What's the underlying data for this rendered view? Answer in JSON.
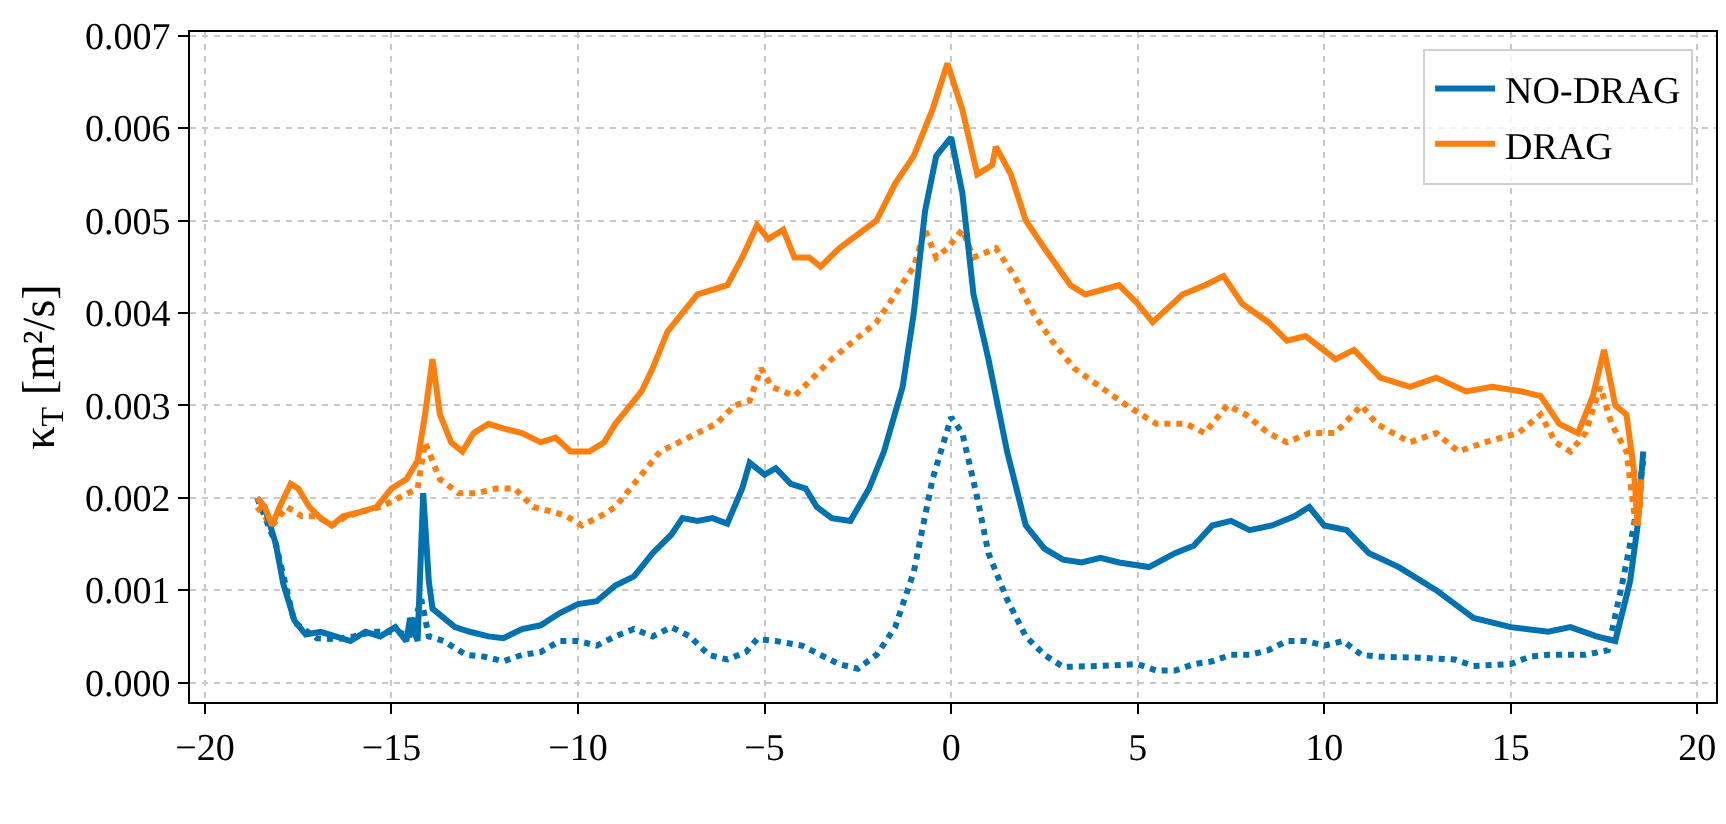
{
  "chart_data": {
    "type": "line",
    "ylabel": "κ$_{T}$ [m²/s]",
    "xlim": [
      -20.4,
      20.5
    ],
    "ylim": [
      -0.00021,
      0.00704
    ],
    "xticks": [
      {
        "value": -20,
        "label": "−20"
      },
      {
        "value": -15,
        "label": "−15"
      },
      {
        "value": -10,
        "label": "−10"
      },
      {
        "value": -5,
        "label": "−5"
      },
      0,
      5,
      10,
      15,
      20
    ],
    "yticks": [
      {
        "value": 0,
        "label": "0.000"
      },
      {
        "value": 0.001,
        "label": "0.001"
      },
      {
        "value": 0.002,
        "label": "0.002"
      },
      {
        "value": 0.003,
        "label": "0.003"
      },
      {
        "value": 0.004,
        "label": "0.004"
      },
      {
        "value": 0.005,
        "label": "0.005"
      },
      {
        "value": 0.006,
        "label": "0.006"
      },
      {
        "value": 0.007,
        "label": "0.007"
      }
    ],
    "grid": true,
    "legend": "top right",
    "marker": "none",
    "line_style": "solid",
    "series": [
      {
        "name": "NO-DRAG",
        "color": "#0072b2",
        "x": [
          -18.6,
          -18.4,
          -18.1,
          -17.9,
          -17.6,
          -17.3,
          -16.9,
          -16.5,
          -16.1,
          -15.7,
          -15.3,
          -14.9,
          -14.6,
          -14.5,
          -14.3,
          -14.15,
          -14.0,
          -13.9,
          -13.6,
          -13.3,
          -12.9,
          -12.4,
          -12.0,
          -11.5,
          -11.0,
          -10.5,
          -10.0,
          -9.5,
          -9.0,
          -8.5,
          -8.0,
          -7.5,
          -7.2,
          -6.8,
          -6.4,
          -6.0,
          -5.6,
          -5.4,
          -5.0,
          -4.7,
          -4.3,
          -3.9,
          -3.6,
          -3.2,
          -2.7,
          -2.2,
          -1.8,
          -1.3,
          -1.0,
          -0.7,
          -0.4,
          0.0,
          0.3,
          0.6,
          1.0,
          1.5,
          2.0,
          2.5,
          3.0,
          3.5,
          4.0,
          4.5,
          5.3,
          6.0,
          6.5,
          7.0,
          7.5,
          8.0,
          8.6,
          9.2,
          9.6,
          10.0,
          10.6,
          11.2,
          12.0,
          13.0,
          14.0,
          15.0,
          16.0,
          16.6,
          17.3,
          17.8,
          18.2,
          18.4,
          18.55
        ],
        "values": [
          0.002,
          0.0019,
          0.0015,
          0.00107,
          0.00067,
          0.00052,
          0.00055,
          0.0005,
          0.00045,
          0.00055,
          0.0005,
          0.0006,
          0.00045,
          0.0007,
          0.00045,
          0.00205,
          0.0011,
          0.0008,
          0.0007,
          0.0006,
          0.00055,
          0.0005,
          0.00048,
          0.00058,
          0.00062,
          0.00075,
          0.00085,
          0.00088,
          0.00105,
          0.00115,
          0.0014,
          0.0016,
          0.00178,
          0.00175,
          0.00178,
          0.00172,
          0.0021,
          0.00238,
          0.00225,
          0.00232,
          0.00215,
          0.0021,
          0.0019,
          0.00178,
          0.00175,
          0.0021,
          0.0025,
          0.0032,
          0.004,
          0.0051,
          0.0057,
          0.0059,
          0.0053,
          0.0042,
          0.0035,
          0.0025,
          0.0017,
          0.00145,
          0.00133,
          0.0013,
          0.00135,
          0.0013,
          0.00125,
          0.0014,
          0.00148,
          0.0017,
          0.00175,
          0.00165,
          0.0017,
          0.0018,
          0.0019,
          0.0017,
          0.00165,
          0.0014,
          0.00125,
          0.001,
          0.0007,
          0.0006,
          0.00055,
          0.0006,
          0.0005,
          0.00045,
          0.0011,
          0.0017,
          0.0025
        ]
      },
      {
        "name": "DRAG",
        "color": "#ff7f0e",
        "x": [
          -18.6,
          -18.4,
          -18.2,
          -18.0,
          -17.7,
          -17.5,
          -17.2,
          -16.9,
          -16.6,
          -16.3,
          -15.8,
          -15.4,
          -15.0,
          -14.6,
          -14.3,
          -14.1,
          -13.9,
          -13.7,
          -13.4,
          -13.1,
          -12.8,
          -12.4,
          -12.0,
          -11.5,
          -11.0,
          -10.6,
          -10.2,
          -9.7,
          -9.3,
          -9.0,
          -8.6,
          -8.3,
          -8.0,
          -7.6,
          -7.2,
          -6.8,
          -6.4,
          -6.0,
          -5.6,
          -5.2,
          -4.9,
          -4.5,
          -4.2,
          -3.8,
          -3.5,
          -3.0,
          -2.5,
          -2.0,
          -1.5,
          -1.0,
          -0.5,
          -0.1,
          0.3,
          0.7,
          1.1,
          1.2,
          1.6,
          2.0,
          2.5,
          3.2,
          3.6,
          4.5,
          5.0,
          5.4,
          6.2,
          6.8,
          7.3,
          7.8,
          8.5,
          9.0,
          9.5,
          10.3,
          10.8,
          11.5,
          12.3,
          13.0,
          13.8,
          14.5,
          15.3,
          15.8,
          16.3,
          16.8,
          17.2,
          17.5,
          17.8,
          18.1,
          18.3,
          18.4,
          18.5
        ],
        "values": [
          0.002,
          0.0019,
          0.0017,
          0.0019,
          0.00215,
          0.0021,
          0.0019,
          0.00178,
          0.0017,
          0.0018,
          0.00185,
          0.0019,
          0.0021,
          0.0022,
          0.0024,
          0.0029,
          0.0035,
          0.0029,
          0.0026,
          0.0025,
          0.0027,
          0.0028,
          0.00275,
          0.0027,
          0.0026,
          0.00265,
          0.0025,
          0.0025,
          0.0026,
          0.0028,
          0.003,
          0.00315,
          0.0034,
          0.0038,
          0.004,
          0.0042,
          0.00425,
          0.0043,
          0.0046,
          0.00495,
          0.0048,
          0.0049,
          0.0046,
          0.0046,
          0.0045,
          0.0047,
          0.00485,
          0.005,
          0.0054,
          0.0057,
          0.0062,
          0.0067,
          0.0062,
          0.0055,
          0.0056,
          0.0058,
          0.0055,
          0.005,
          0.0047,
          0.0043,
          0.0042,
          0.0043,
          0.0041,
          0.0039,
          0.0042,
          0.0043,
          0.0044,
          0.0041,
          0.0039,
          0.0037,
          0.00375,
          0.0035,
          0.0036,
          0.0033,
          0.0032,
          0.0033,
          0.00315,
          0.0032,
          0.00315,
          0.0031,
          0.0028,
          0.0027,
          0.0031,
          0.0036,
          0.003,
          0.0029,
          0.0023,
          0.0017,
          0.0022
        ]
      },
      {
        "color": "#0072b2",
        "line_style": "dotted",
        "x": [
          -18.6,
          -18.1,
          -17.6,
          -17.0,
          -16.5,
          -16.0,
          -15.5,
          -15.0,
          -14.5,
          -14.2,
          -14.0,
          -13.6,
          -13.0,
          -12.5,
          -12.0,
          -11.5,
          -11.0,
          -10.5,
          -10.0,
          -9.5,
          -9.0,
          -8.5,
          -8.0,
          -7.5,
          -7.0,
          -6.5,
          -6.0,
          -5.5,
          -5.2,
          -4.7,
          -4.0,
          -3.5,
          -3.0,
          -2.5,
          -2.0,
          -1.5,
          -1.0,
          -0.5,
          0.0,
          0.3,
          0.7,
          1.0,
          1.5,
          2.0,
          2.5,
          3.0,
          4.0,
          5.0,
          5.5,
          6.0,
          6.5,
          7.0,
          7.5,
          8.0,
          8.5,
          9.0,
          9.5,
          10.0,
          10.5,
          11.0,
          11.5,
          12.5,
          13.5,
          14.0,
          15.0,
          15.5,
          16.0,
          16.5,
          17.0,
          17.6,
          18.0,
          18.3,
          18.55
        ],
        "values": [
          0.002,
          0.0015,
          0.00065,
          0.00048,
          0.00047,
          0.0005,
          0.00055,
          0.00055,
          0.00052,
          0.0009,
          0.0005,
          0.00045,
          0.0003,
          0.00028,
          0.00023,
          0.0003,
          0.00033,
          0.00045,
          0.00045,
          0.0004,
          0.0005,
          0.00058,
          0.0005,
          0.0006,
          0.0005,
          0.0003,
          0.00025,
          0.00033,
          0.00047,
          0.00045,
          0.0004,
          0.0003,
          0.0002,
          0.00015,
          0.0003,
          0.0006,
          0.0012,
          0.0022,
          0.00287,
          0.0027,
          0.002,
          0.0014,
          0.0009,
          0.0005,
          0.0003,
          0.00017,
          0.00018,
          0.0002,
          0.00013,
          0.00013,
          0.0002,
          0.00023,
          0.0003,
          0.0003,
          0.00035,
          0.00045,
          0.00045,
          0.0004,
          0.00045,
          0.0003,
          0.00028,
          0.00027,
          0.00025,
          0.00018,
          0.0002,
          0.00028,
          0.0003,
          0.0003,
          0.0003,
          0.00035,
          0.0011,
          0.0017,
          0.0024
        ]
      },
      {
        "color": "#ff7f0e",
        "line_style": "dotted",
        "x": [
          -18.6,
          -18.2,
          -17.8,
          -17.4,
          -17.0,
          -16.6,
          -16.2,
          -15.8,
          -15.3,
          -14.8,
          -14.3,
          -14.1,
          -13.9,
          -13.7,
          -13.2,
          -12.7,
          -12.2,
          -11.7,
          -11.2,
          -10.7,
          -10.3,
          -9.9,
          -9.4,
          -9.0,
          -8.6,
          -8.2,
          -7.8,
          -7.3,
          -6.8,
          -6.3,
          -5.8,
          -5.4,
          -5.1,
          -4.8,
          -4.2,
          -3.7,
          -3.2,
          -2.6,
          -2.0,
          -1.5,
          -1.0,
          -0.7,
          -0.4,
          -0.1,
          0.3,
          0.6,
          1.2,
          1.7,
          2.2,
          2.7,
          3.3,
          4.0,
          4.7,
          5.5,
          6.3,
          6.8,
          7.4,
          7.9,
          8.5,
          9.0,
          9.6,
          10.3,
          11.0,
          11.4,
          12.3,
          13.0,
          13.6,
          14.3,
          15.2,
          15.8,
          16.2,
          16.6,
          17.0,
          17.4,
          17.7,
          18.1,
          18.35,
          18.5
        ],
        "values": [
          0.0019,
          0.0017,
          0.0019,
          0.0018,
          0.0018,
          0.0017,
          0.0018,
          0.00185,
          0.0019,
          0.002,
          0.0021,
          0.0026,
          0.0024,
          0.0022,
          0.00205,
          0.00205,
          0.0021,
          0.0021,
          0.0019,
          0.00185,
          0.0018,
          0.0017,
          0.0018,
          0.0019,
          0.0021,
          0.0023,
          0.0025,
          0.0026,
          0.0027,
          0.0028,
          0.003,
          0.00305,
          0.0034,
          0.0032,
          0.0031,
          0.0033,
          0.0035,
          0.0037,
          0.0039,
          0.0042,
          0.0045,
          0.0049,
          0.0046,
          0.0047,
          0.0049,
          0.0046,
          0.0047,
          0.0044,
          0.004,
          0.0037,
          0.0034,
          0.0032,
          0.003,
          0.0028,
          0.0028,
          0.0027,
          0.003,
          0.0029,
          0.0027,
          0.0026,
          0.0027,
          0.0027,
          0.003,
          0.0028,
          0.0026,
          0.0027,
          0.0025,
          0.0026,
          0.0027,
          0.0029,
          0.0026,
          0.0025,
          0.0027,
          0.0032,
          0.0028,
          0.0025,
          0.0017,
          0.002
        ]
      }
    ]
  }
}
